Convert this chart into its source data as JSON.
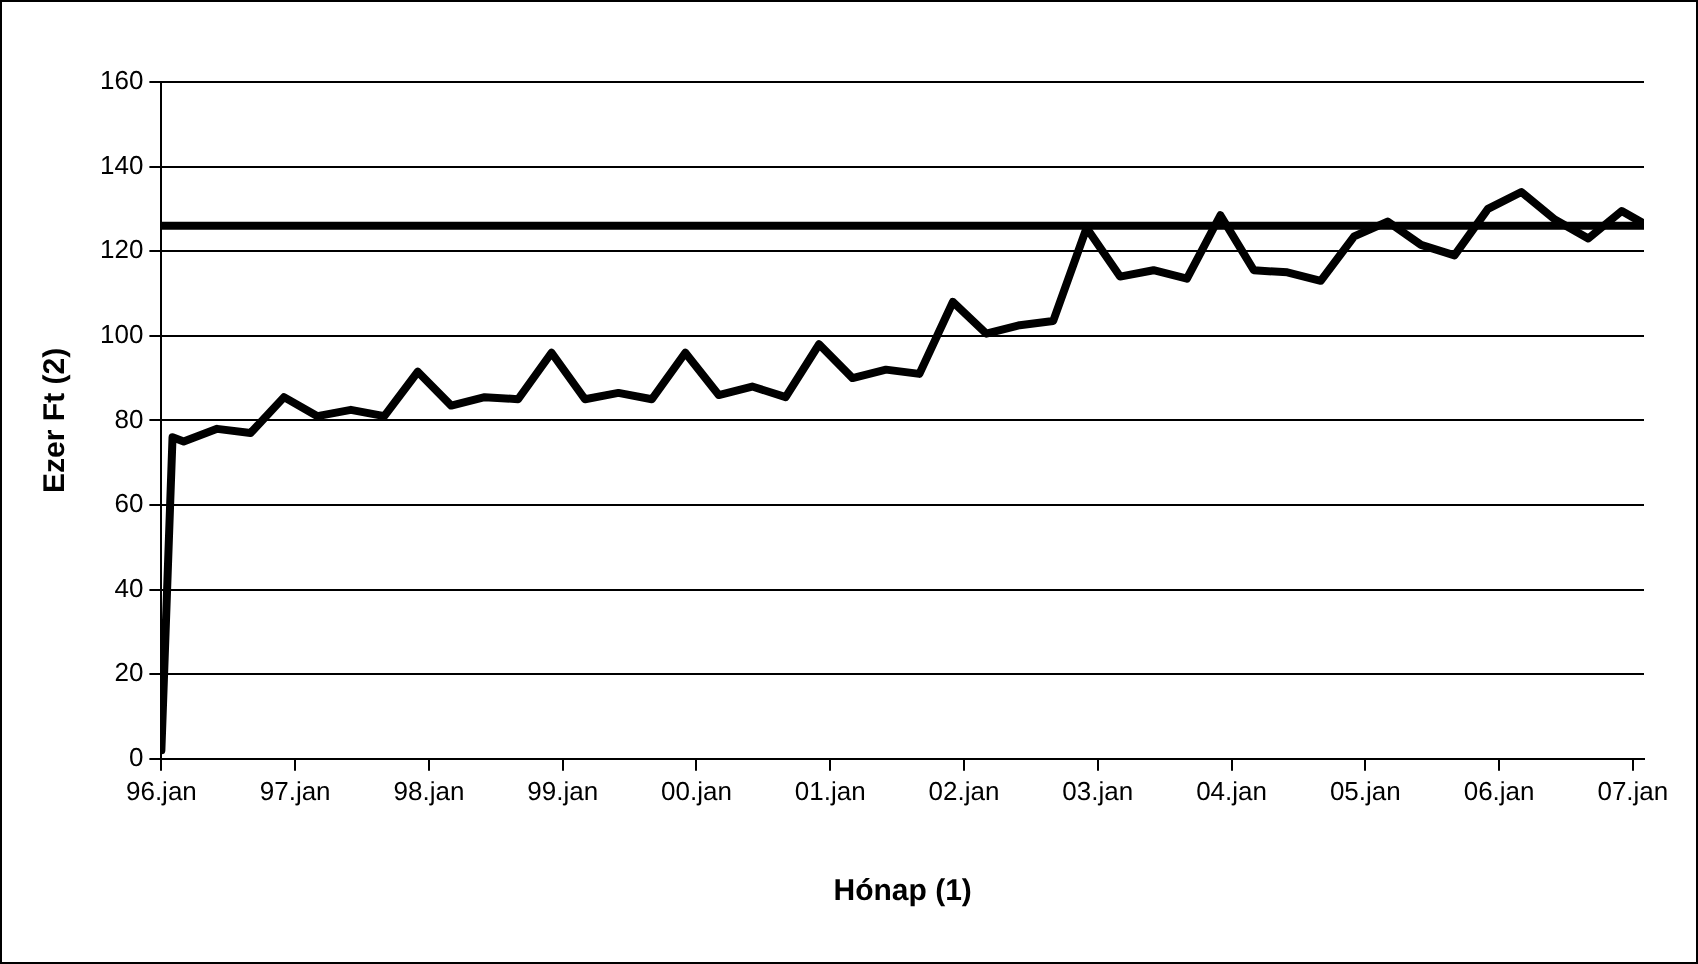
{
  "chart_data": {
    "type": "line",
    "xlabel": "Hónap (1)",
    "ylabel": "Ezer Ft (2)",
    "x": [
      "1996-01",
      "1996-02",
      "1996-03",
      "1996-06",
      "1996-09",
      "1996-12",
      "1997-03",
      "1997-06",
      "1997-09",
      "1997-12",
      "1998-03",
      "1998-06",
      "1998-09",
      "1998-12",
      "1999-03",
      "1999-06",
      "1999-09",
      "1999-12",
      "2000-03",
      "2000-06",
      "2000-09",
      "2000-12",
      "2001-03",
      "2001-06",
      "2001-09",
      "2001-12",
      "2002-03",
      "2002-06",
      "2002-09",
      "2002-12",
      "2003-03",
      "2003-06",
      "2003-09",
      "2003-12",
      "2004-03",
      "2004-06",
      "2004-09",
      "2004-12",
      "2005-03",
      "2005-06",
      "2005-09",
      "2005-12",
      "2006-03",
      "2006-06",
      "2006-09",
      "2006-12",
      "2007-02"
    ],
    "series": [
      {
        "color": "#000000",
        "values": [
          2,
          76,
          75,
          78,
          77,
          85.5,
          81,
          82.5,
          81,
          91.5,
          83.5,
          85.5,
          85,
          96,
          85,
          86.5,
          85,
          96,
          86,
          88,
          85.5,
          98,
          90,
          92,
          91,
          108,
          100.5,
          102.5,
          103.5,
          125.5,
          114,
          115.5,
          113.5,
          128.5,
          115.5,
          115,
          113,
          123.5,
          127,
          121.5,
          119,
          130,
          134,
          127.5,
          123,
          129.5,
          126.5
        ]
      }
    ],
    "xlim": [
      "1996-01",
      "2007-02"
    ],
    "xticks": [
      {
        "value": "1996-01",
        "label": "96.jan"
      },
      {
        "value": "1997-01",
        "label": "97.jan"
      },
      {
        "value": "1998-01",
        "label": "98.jan"
      },
      {
        "value": "1999-01",
        "label": "99.jan"
      },
      {
        "value": "2000-01",
        "label": "00.jan"
      },
      {
        "value": "2001-01",
        "label": "01.jan"
      },
      {
        "value": "2002-01",
        "label": "02.jan"
      },
      {
        "value": "2003-01",
        "label": "03.jan"
      },
      {
        "value": "2004-01",
        "label": "04.jan"
      },
      {
        "value": "2005-01",
        "label": "05.jan"
      },
      {
        "value": "2006-01",
        "label": "06.jan"
      },
      {
        "value": "2007-01",
        "label": "07.jan"
      }
    ],
    "ylim": [
      0,
      160
    ],
    "yticks": [
      0,
      20,
      40,
      60,
      80,
      100,
      120,
      140,
      160
    ],
    "ref_lines": [
      {
        "axis": "y",
        "value": 126,
        "color": "#000000"
      }
    ],
    "grid": "y",
    "legend": false,
    "marker": "none",
    "line_style": "solid"
  }
}
